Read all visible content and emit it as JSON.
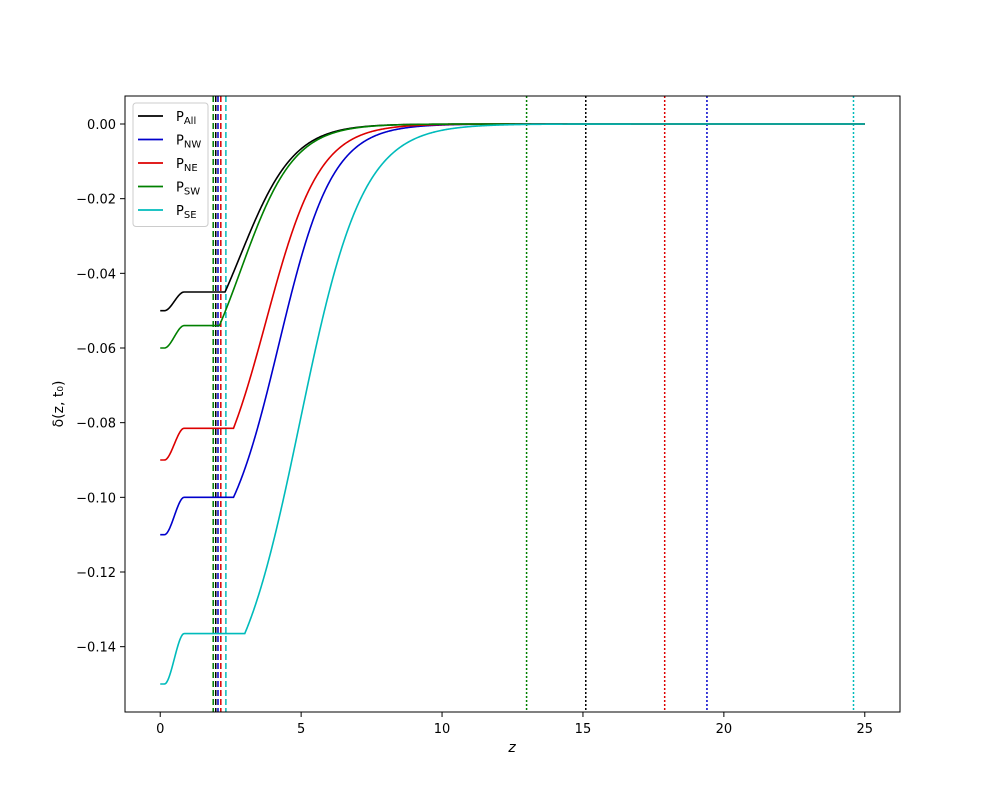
{
  "chart_data": {
    "type": "line",
    "title": "",
    "xlabel": "z",
    "ylabel": "δ(z, t₀)",
    "xlim": [
      -1.25,
      26.25
    ],
    "ylim": [
      -0.1575,
      0.0075
    ],
    "xticks": [
      0,
      5,
      10,
      15,
      20,
      25
    ],
    "yticks": [
      0.0,
      -0.02,
      -0.04,
      -0.06,
      -0.08,
      -0.1,
      -0.12,
      -0.14
    ],
    "ytick_labels": [
      "0.00",
      "−0.02",
      "−0.04",
      "−0.06",
      "−0.08",
      "−0.10",
      "−0.12",
      "−0.14"
    ],
    "grid": false,
    "legend_position": "top-left",
    "series": [
      {
        "name": "P",
        "sub": "All",
        "color": "#000000",
        "d0": -0.05,
        "dp": -0.045,
        "k": 1.05,
        "z0": 2.3,
        "zf": 2.85
      },
      {
        "name": "P",
        "sub": "NW",
        "color": "#0000cc",
        "d0": -0.11,
        "dp": -0.1,
        "k": 1.05,
        "z0": 2.6,
        "zf": 4.2
      },
      {
        "name": "P",
        "sub": "NE",
        "color": "#dd0000",
        "d0": -0.09,
        "dp": -0.0815,
        "k": 1.05,
        "z0": 2.6,
        "zf": 3.75
      },
      {
        "name": "P",
        "sub": "SW",
        "color": "#008000",
        "d0": -0.06,
        "dp": -0.054,
        "k": 1.05,
        "z0": 2.1,
        "zf": 2.85
      },
      {
        "name": "P",
        "sub": "SE",
        "color": "#00bbbb",
        "d0": -0.15,
        "dp": -0.1365,
        "k": 0.9,
        "z0": 3.0,
        "zf": 4.95
      }
    ],
    "vlines": [
      {
        "x": 1.88,
        "color": "#008000",
        "style": "dashed"
      },
      {
        "x": 1.97,
        "color": "#000000",
        "style": "dashed"
      },
      {
        "x": 2.05,
        "color": "#0000cc",
        "style": "dashed"
      },
      {
        "x": 2.15,
        "color": "#dd0000",
        "style": "dashed"
      },
      {
        "x": 2.33,
        "color": "#00bbbb",
        "style": "dashed"
      },
      {
        "x": 13.0,
        "color": "#008000",
        "style": "dotted"
      },
      {
        "x": 15.1,
        "color": "#000000",
        "style": "dotted"
      },
      {
        "x": 17.9,
        "color": "#dd0000",
        "style": "dotted"
      },
      {
        "x": 19.4,
        "color": "#0000cc",
        "style": "dotted"
      },
      {
        "x": 24.6,
        "color": "#00bbbb",
        "style": "dotted"
      }
    ]
  }
}
